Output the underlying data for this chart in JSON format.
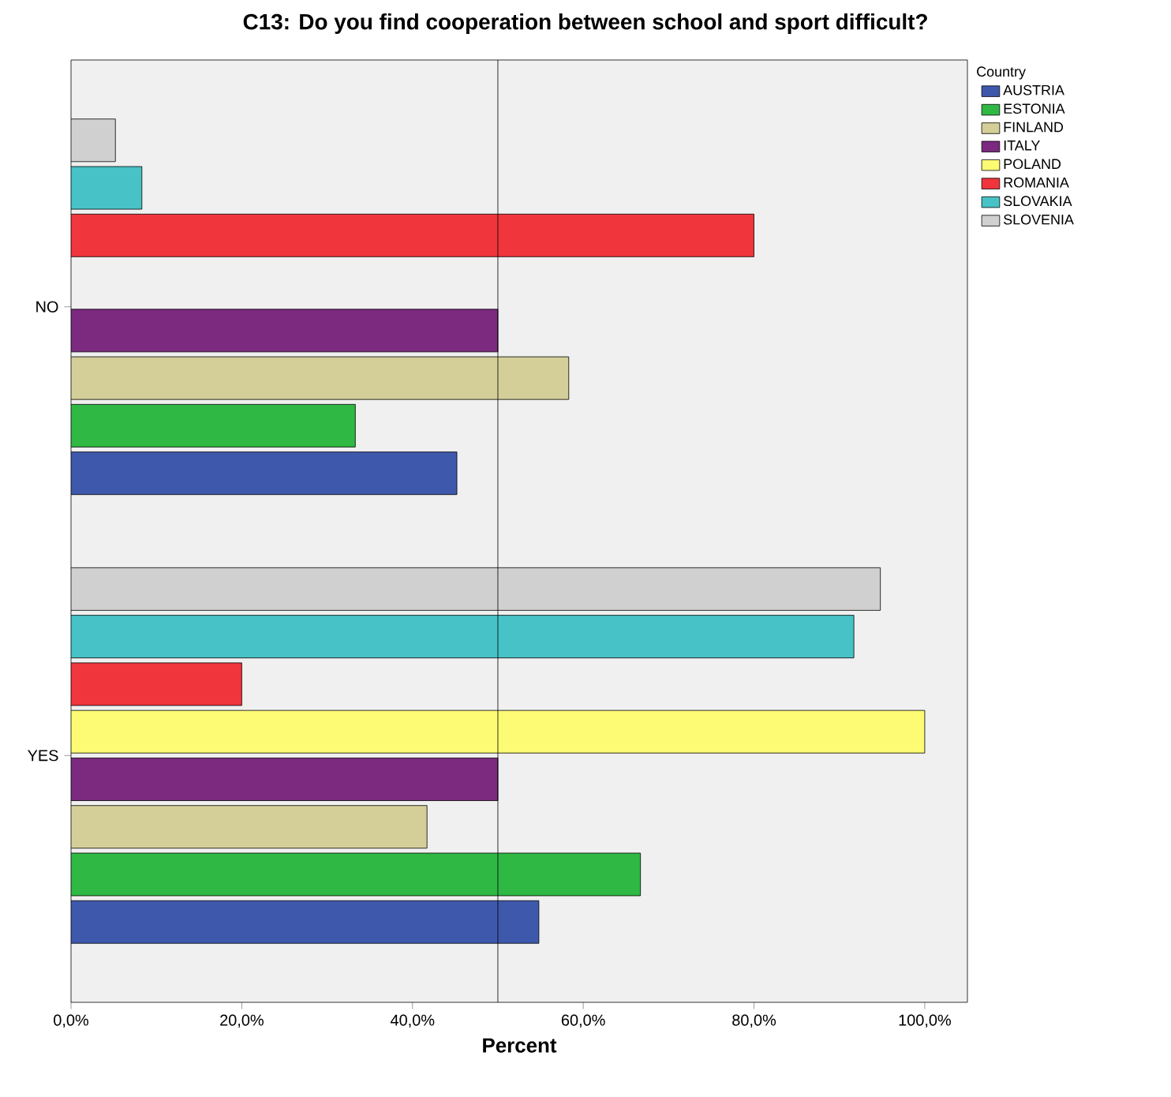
{
  "chart_data": {
    "type": "bar",
    "orientation": "horizontal",
    "title": "C13: Do you find cooperation between school and sport difficult?",
    "xlabel": "Percent",
    "legend_title": "Country",
    "legend": "right",
    "grid": false,
    "categories": [
      "NO",
      "YES"
    ],
    "series": [
      {
        "name": "AUSTRIA",
        "color": "#3e58ac",
        "values": [
          45.2,
          54.8
        ]
      },
      {
        "name": "ESTONIA",
        "color": "#2fb844",
        "values": [
          33.3,
          66.7
        ]
      },
      {
        "name": "FINLAND",
        "color": "#d4cf98",
        "values": [
          58.3,
          41.7
        ]
      },
      {
        "name": "ITALY",
        "color": "#7b2a7f",
        "values": [
          50,
          50
        ]
      },
      {
        "name": "POLAND",
        "color": "#fdfb73",
        "values": [
          null,
          100
        ]
      },
      {
        "name": "ROMANIA",
        "color": "#f0353c",
        "values": [
          80,
          20
        ]
      },
      {
        "name": "SLOVAKIA",
        "color": "#47c2c6",
        "values": [
          8.3,
          91.7
        ]
      },
      {
        "name": "SLOVENIA",
        "color": "#d0d0d0",
        "values": [
          5.2,
          94.8
        ]
      }
    ],
    "xlim": [
      0,
      105
    ],
    "xticks": [
      {
        "value": 0,
        "label": "0,0%"
      },
      {
        "value": 20,
        "label": "20,0%"
      },
      {
        "value": 40,
        "label": "40,0%"
      },
      {
        "value": 60,
        "label": "60,0%"
      },
      {
        "value": 80,
        "label": "80,0%"
      },
      {
        "value": 100,
        "label": "100,0%"
      }
    ],
    "ref_lines": [
      {
        "axis": "x",
        "value": 50,
        "color": "#000000"
      }
    ]
  }
}
